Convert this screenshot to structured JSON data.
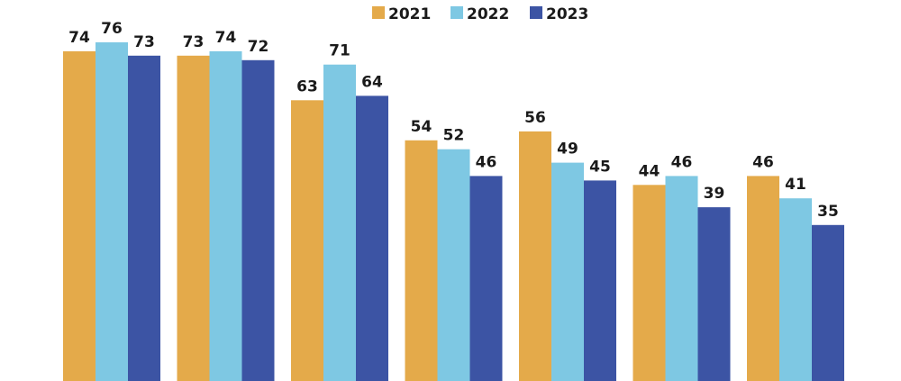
{
  "chart_data": {
    "type": "bar",
    "title": "",
    "xlabel": "",
    "ylabel": "",
    "ylim": [
      0,
      76
    ],
    "grid": false,
    "legend_position": "top",
    "categories": [
      "",
      "",
      "",
      "",
      "",
      "",
      ""
    ],
    "series": [
      {
        "name": "2021",
        "color": "#E4AA4A",
        "values": [
          74,
          73,
          63,
          54,
          56,
          44,
          46
        ]
      },
      {
        "name": "2022",
        "color": "#7EC8E3",
        "values": [
          76,
          74,
          71,
          52,
          49,
          46,
          41
        ]
      },
      {
        "name": "2023",
        "color": "#3C54A4",
        "values": [
          73,
          72,
          64,
          46,
          45,
          39,
          35
        ]
      }
    ]
  }
}
